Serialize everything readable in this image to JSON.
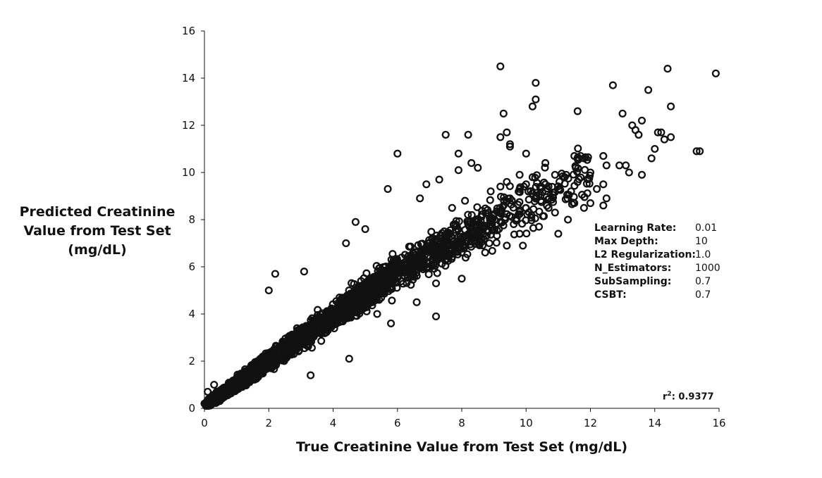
{
  "chart_data": {
    "type": "scatter",
    "title": "",
    "xlabel": "True Creatinine Value from Test Set (mg/dL)",
    "ylabel_lines": [
      "Predicted Creatinine",
      "Value from Test Set",
      "(mg/dL)"
    ],
    "xlim": [
      0,
      16
    ],
    "ylim": [
      0,
      16
    ],
    "xticks": [
      "0",
      "2",
      "4",
      "6",
      "8",
      "10",
      "12",
      "14",
      "16"
    ],
    "yticks": [
      "0",
      "2",
      "4",
      "6",
      "8",
      "10",
      "12",
      "14",
      "16"
    ],
    "grid": false,
    "marker": "open-circle",
    "point_color": "#111111",
    "r2": {
      "label": "r",
      "exponent": "2",
      "suffix": ":",
      "value": "0.9377"
    },
    "model_params": [
      {
        "label": "Learning Rate:",
        "value": "0.01"
      },
      {
        "label": "Max Depth:",
        "value": "10"
      },
      {
        "label": "L2 Regularization:",
        "value": "1.0"
      },
      {
        "label": "N_Estimators:",
        "value": "1000"
      },
      {
        "label": "SubSampling:",
        "value": "0.7"
      },
      {
        "label": "CSBT:",
        "value": "0.7"
      }
    ],
    "points": [
      [
        9.2,
        14.5
      ],
      [
        14.4,
        14.4
      ],
      [
        15.9,
        14.2
      ],
      [
        10.3,
        13.8
      ],
      [
        12.7,
        13.7
      ],
      [
        13.8,
        13.5
      ],
      [
        10.3,
        13.1
      ],
      [
        10.2,
        12.8
      ],
      [
        14.5,
        12.8
      ],
      [
        11.6,
        12.6
      ],
      [
        9.3,
        12.5
      ],
      [
        13.0,
        12.5
      ],
      [
        13.6,
        12.2
      ],
      [
        13.3,
        12.0
      ],
      [
        13.4,
        11.8
      ],
      [
        13.5,
        11.6
      ],
      [
        7.5,
        11.6
      ],
      [
        8.2,
        11.6
      ],
      [
        9.4,
        11.7
      ],
      [
        9.2,
        11.5
      ],
      [
        14.1,
        11.7
      ],
      [
        14.2,
        11.7
      ],
      [
        14.5,
        11.5
      ],
      [
        14.3,
        11.4
      ],
      [
        9.5,
        11.2
      ],
      [
        9.5,
        11.1
      ],
      [
        6.0,
        10.8
      ],
      [
        14.0,
        11.0
      ],
      [
        15.3,
        10.9
      ],
      [
        15.4,
        10.9
      ],
      [
        13.9,
        10.6
      ],
      [
        10.0,
        10.8
      ],
      [
        12.4,
        10.7
      ],
      [
        11.5,
        10.7
      ],
      [
        11.8,
        10.6
      ],
      [
        10.6,
        10.4
      ],
      [
        7.9,
        10.8
      ],
      [
        8.3,
        10.4
      ],
      [
        8.5,
        10.2
      ],
      [
        12.9,
        10.3
      ],
      [
        13.1,
        10.3
      ],
      [
        13.6,
        9.9
      ],
      [
        13.2,
        10.0
      ],
      [
        12.5,
        10.3
      ],
      [
        12.0,
        10.0
      ],
      [
        10.9,
        9.9
      ],
      [
        9.8,
        9.9
      ],
      [
        10.2,
        9.8
      ],
      [
        11.2,
        9.8
      ],
      [
        7.9,
        10.1
      ],
      [
        12.4,
        9.5
      ],
      [
        12.2,
        9.3
      ],
      [
        11.6,
        9.6
      ],
      [
        11.4,
        9.2
      ],
      [
        11.5,
        8.7
      ],
      [
        10.7,
        8.5
      ],
      [
        10.9,
        8.3
      ],
      [
        11.3,
        8.0
      ],
      [
        11.0,
        7.4
      ],
      [
        10.4,
        7.7
      ],
      [
        12.4,
        8.6
      ],
      [
        12.5,
        8.9
      ],
      [
        11.8,
        8.5
      ],
      [
        12.0,
        8.7
      ],
      [
        9.4,
        6.9
      ],
      [
        9.9,
        6.9
      ],
      [
        9.8,
        7.4
      ],
      [
        8.2,
        7.8
      ],
      [
        10.6,
        9.5
      ],
      [
        9.5,
        8.9
      ],
      [
        9.8,
        9.3
      ],
      [
        10.0,
        9.5
      ],
      [
        5.7,
        9.3
      ],
      [
        6.9,
        9.5
      ],
      [
        7.3,
        9.7
      ],
      [
        9.2,
        9.4
      ],
      [
        9.4,
        9.6
      ],
      [
        8.9,
        9.2
      ],
      [
        6.7,
        8.9
      ],
      [
        8.1,
        8.8
      ],
      [
        7.7,
        8.5
      ],
      [
        7.2,
        5.3
      ],
      [
        8.0,
        5.5
      ],
      [
        6.6,
        4.5
      ],
      [
        7.2,
        3.9
      ],
      [
        4.5,
        2.1
      ],
      [
        5.8,
        3.6
      ],
      [
        3.3,
        1.4
      ],
      [
        3.4,
        3.4
      ],
      [
        0.0,
        0.2
      ],
      [
        0.1,
        0.7
      ],
      [
        0.3,
        1.0
      ],
      [
        2.0,
        5.0
      ],
      [
        2.2,
        5.7
      ],
      [
        3.1,
        5.8
      ],
      [
        4.2,
        4.7
      ],
      [
        4.7,
        7.9
      ],
      [
        4.4,
        7.0
      ],
      [
        5.0,
        7.6
      ]
    ]
  }
}
